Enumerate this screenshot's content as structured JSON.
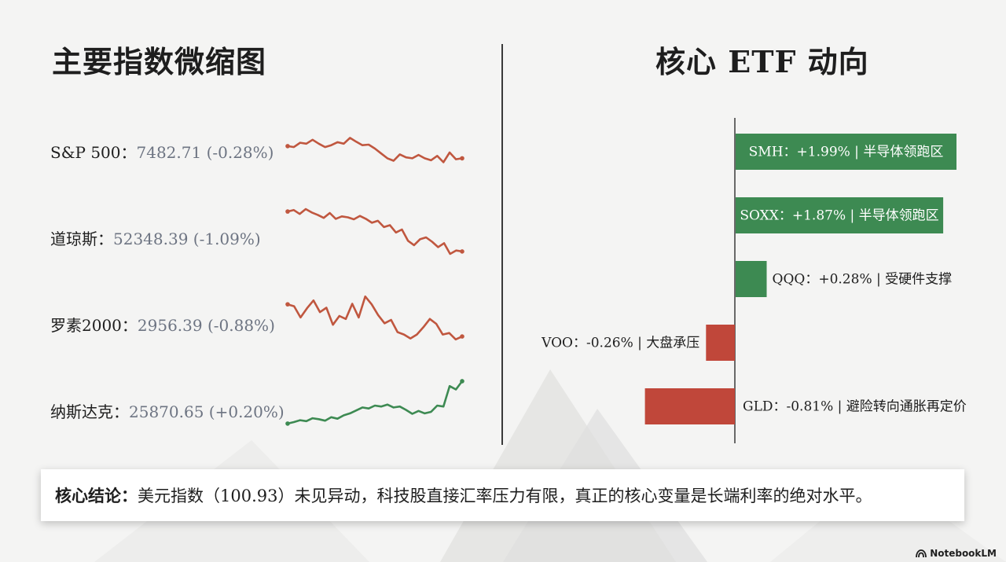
{
  "left_panel": {
    "title": "主要指数微缩图"
  },
  "right_panel": {
    "title": "核心 ETF 动向"
  },
  "indices": [
    {
      "name": "S&P 500：",
      "value": "7482.71 (-0.28%)",
      "trend": "down",
      "series": [
        0.55,
        0.53,
        0.62,
        0.6,
        0.68,
        0.6,
        0.53,
        0.57,
        0.63,
        0.6,
        0.72,
        0.64,
        0.57,
        0.58,
        0.5,
        0.4,
        0.3,
        0.25,
        0.38,
        0.32,
        0.3,
        0.37,
        0.3,
        0.26,
        0.35,
        0.22,
        0.42,
        0.28,
        0.3
      ]
    },
    {
      "name": "道琼斯：",
      "value": "52348.39 (-1.09%)",
      "trend": "down",
      "series": [
        0.95,
        0.98,
        0.9,
        1.0,
        0.93,
        0.88,
        0.82,
        0.92,
        0.8,
        0.85,
        0.83,
        0.79,
        0.86,
        0.8,
        0.72,
        0.76,
        0.63,
        0.67,
        0.52,
        0.58,
        0.35,
        0.26,
        0.38,
        0.42,
        0.33,
        0.22,
        0.3,
        0.08,
        0.15,
        0.13
      ]
    },
    {
      "name": "罗素2000：",
      "value": "2956.39 (-0.88%)",
      "trend": "down",
      "series": [
        0.82,
        0.78,
        0.55,
        0.74,
        0.9,
        0.66,
        0.75,
        0.4,
        0.58,
        0.52,
        0.83,
        0.55,
        0.98,
        0.82,
        0.6,
        0.43,
        0.5,
        0.25,
        0.2,
        0.12,
        0.2,
        0.35,
        0.52,
        0.42,
        0.2,
        0.23,
        0.1,
        0.16
      ]
    },
    {
      "name": "纳斯达克：",
      "value": "25870.65 (+0.20%)",
      "trend": "up",
      "series": [
        0.05,
        0.08,
        0.12,
        0.1,
        0.16,
        0.14,
        0.11,
        0.18,
        0.15,
        0.22,
        0.26,
        0.32,
        0.38,
        0.36,
        0.42,
        0.4,
        0.44,
        0.38,
        0.4,
        0.33,
        0.25,
        0.31,
        0.26,
        0.29,
        0.42,
        0.4,
        0.82,
        0.75,
        0.92
      ]
    }
  ],
  "etfs": [
    {
      "ticker": "SMH",
      "change": 1.99,
      "label": "SMH：+1.99% | 半导体领跑区"
    },
    {
      "ticker": "SOXX",
      "change": 1.87,
      "label": "SOXX：+1.87% | 半导体领跑区"
    },
    {
      "ticker": "QQQ",
      "change": 0.28,
      "label": "QQQ：+0.28% | 受硬件支撑"
    },
    {
      "ticker": "VOO",
      "change": -0.26,
      "label": "VOO：-0.26% | 大盘承压"
    },
    {
      "ticker": "GLD",
      "change": -0.81,
      "label": "GLD：-0.81% | 避险转向通胀再定价"
    }
  ],
  "chart_data": [
    {
      "type": "line",
      "series": [
        {
          "name": "S&P 500",
          "last": 7482.71,
          "change_pct": -0.28
        },
        {
          "name": "道琼斯",
          "last": 52348.39,
          "change_pct": -1.09
        },
        {
          "name": "罗素2000",
          "last": 2956.39,
          "change_pct": -0.88
        },
        {
          "name": "纳斯达克",
          "last": 25870.65,
          "change_pct": 0.2
        }
      ]
    },
    {
      "type": "bar",
      "orientation": "horizontal",
      "categories": [
        "SMH",
        "SOXX",
        "QQQ",
        "VOO",
        "GLD"
      ],
      "values": [
        1.99,
        1.87,
        0.28,
        -0.26,
        -0.81
      ],
      "title": "核心 ETF 动向"
    }
  ],
  "colors": {
    "up": "#3b8a50",
    "down": "#c34836",
    "spark_down": "#c0573f",
    "spark_up": "#3d8a52",
    "bar_up": "#3d8a52",
    "bar_down": "#c0473a"
  },
  "conclusion": {
    "lead": "核心结论：",
    "text": "美元指数（100.93）未见异动，科技股直接汇率压力有限，真正的核心变量是长端利率的绝对水平。"
  },
  "brand": {
    "name": "NotebookLM",
    "icon": "notebooklm-logo-icon"
  }
}
